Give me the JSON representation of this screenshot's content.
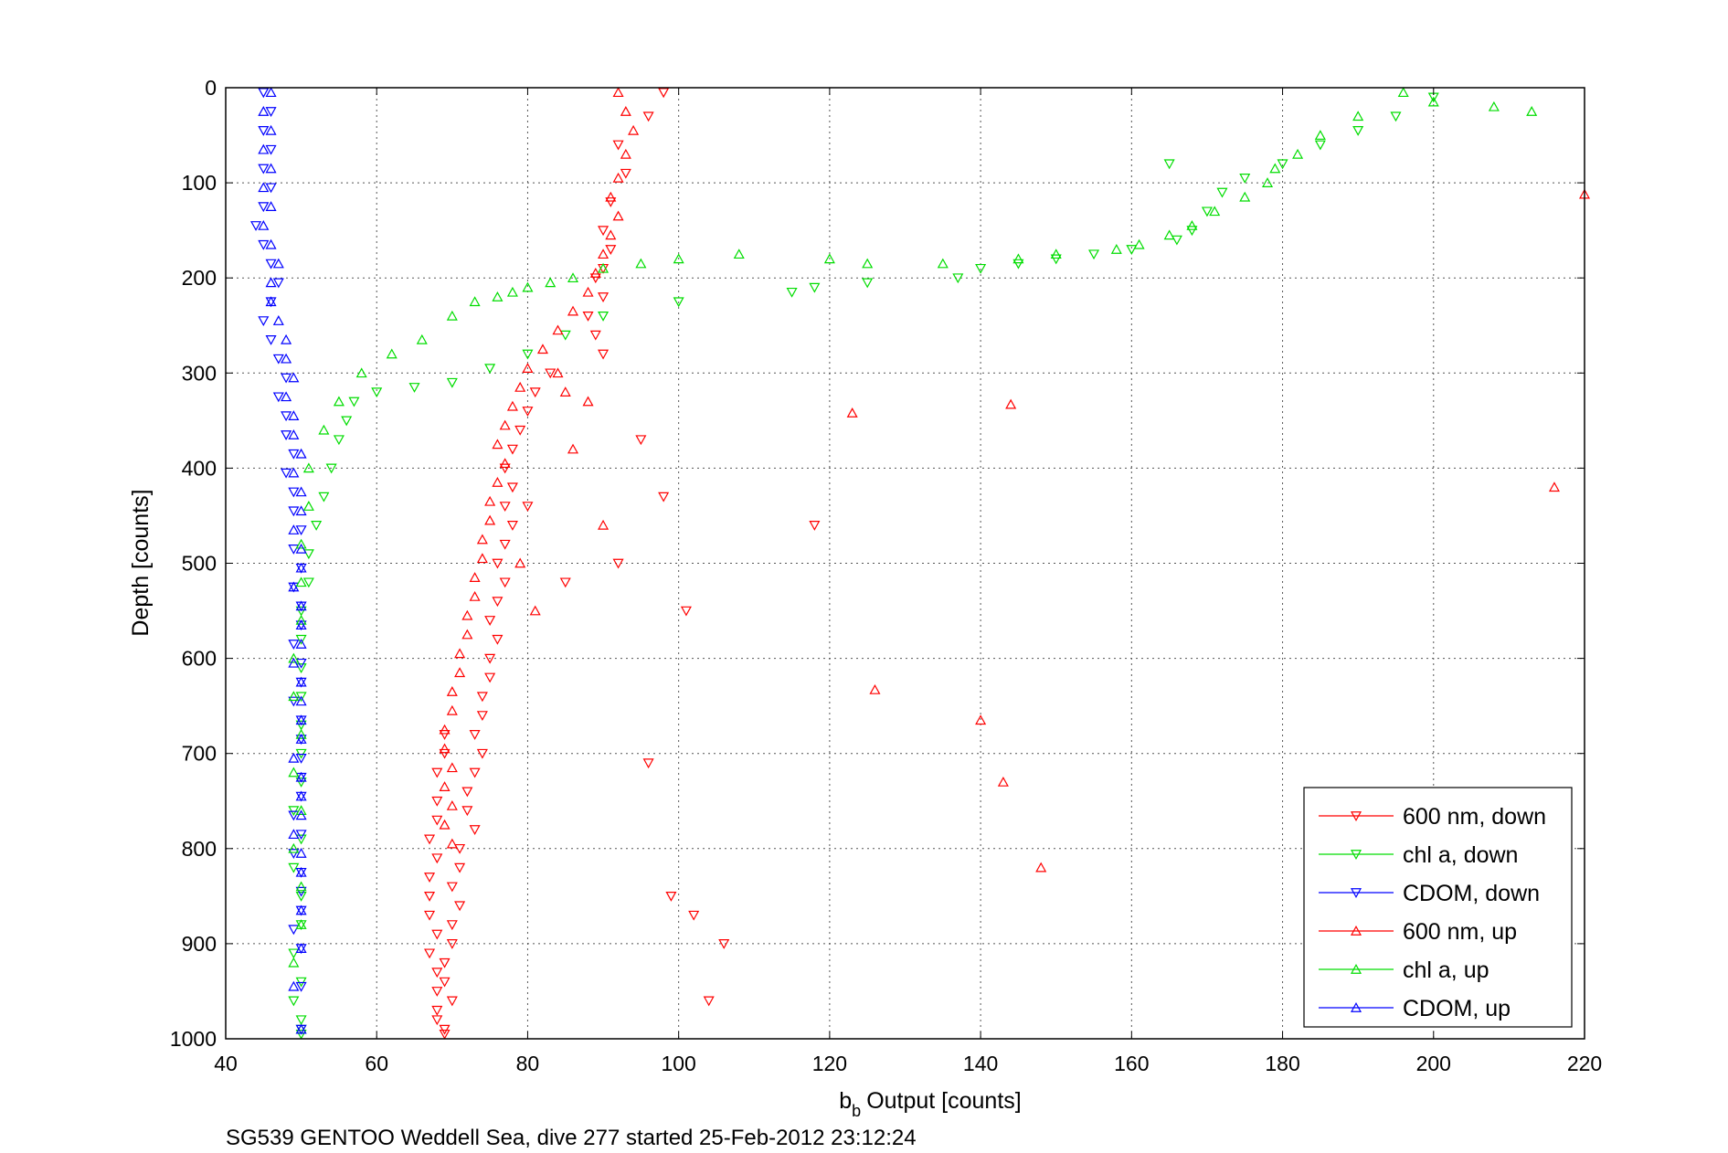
{
  "chart_data": {
    "type": "scatter",
    "title": "",
    "xlabel": "Output [counts]",
    "xlabel_prefix": "b",
    "xlabel_subscript": "b",
    "ylabel": "Depth [counts]",
    "xlim": [
      40,
      220
    ],
    "ylim": [
      0,
      1000
    ],
    "y_reversed": true,
    "grid": true,
    "x_ticks": [
      40,
      60,
      80,
      100,
      120,
      140,
      160,
      180,
      200,
      220
    ],
    "y_ticks": [
      0,
      100,
      200,
      300,
      400,
      500,
      600,
      700,
      800,
      900,
      1000
    ],
    "legend_position": "bottom-right",
    "series": [
      {
        "name": "600 nm, down",
        "color": "#ff0000",
        "marker": "triangle-down",
        "x": [
          98,
          96,
          92,
          93,
          91,
          90,
          91,
          90,
          89,
          90,
          88,
          89,
          90,
          83,
          81,
          80,
          79,
          78,
          77,
          78,
          77,
          78,
          77,
          76,
          77,
          76,
          75,
          76,
          75,
          75,
          74,
          74,
          73,
          74,
          73,
          72,
          72,
          73,
          71,
          71,
          70,
          71,
          70,
          70,
          69,
          69,
          70,
          68,
          69,
          68,
          68,
          67,
          68,
          67,
          67,
          67,
          68,
          67,
          68,
          68,
          68,
          69,
          68,
          69,
          69,
          80,
          85,
          95,
          98,
          101,
          92,
          118,
          99,
          102,
          104,
          106,
          96
        ],
        "y": [
          5,
          30,
          60,
          90,
          120,
          150,
          170,
          190,
          200,
          220,
          240,
          260,
          280,
          300,
          320,
          340,
          360,
          380,
          400,
          420,
          440,
          460,
          480,
          500,
          520,
          540,
          560,
          580,
          600,
          620,
          640,
          660,
          680,
          700,
          720,
          740,
          760,
          780,
          800,
          820,
          840,
          860,
          880,
          900,
          920,
          940,
          960,
          980,
          995,
          750,
          770,
          790,
          810,
          830,
          850,
          870,
          890,
          910,
          930,
          950,
          970,
          990,
          720,
          700,
          680,
          440,
          520,
          370,
          430,
          550,
          500,
          460,
          850,
          870,
          960,
          900,
          710
        ]
      },
      {
        "name": "chl a, down",
        "color": "#00dd00",
        "marker": "triangle-down",
        "x": [
          200,
          195,
          190,
          185,
          180,
          175,
          172,
          170,
          168,
          166,
          165,
          160,
          155,
          150,
          145,
          140,
          137,
          125,
          118,
          115,
          100,
          90,
          85,
          80,
          75,
          70,
          65,
          60,
          57,
          56,
          55,
          54,
          53,
          52,
          51,
          51,
          50,
          50,
          50,
          50,
          50,
          50,
          50,
          49,
          50,
          49,
          50,
          50,
          49,
          50,
          49,
          50,
          50,
          50
        ],
        "y": [
          10,
          30,
          45,
          60,
          80,
          95,
          110,
          130,
          150,
          160,
          80,
          170,
          175,
          180,
          185,
          190,
          200,
          205,
          210,
          215,
          225,
          240,
          260,
          280,
          295,
          310,
          315,
          320,
          330,
          350,
          370,
          400,
          430,
          460,
          490,
          520,
          550,
          580,
          610,
          640,
          670,
          700,
          730,
          760,
          790,
          820,
          850,
          880,
          910,
          940,
          960,
          980,
          995,
          990
        ]
      },
      {
        "name": "CDOM, down",
        "color": "#0000ff",
        "marker": "triangle-down",
        "x": [
          45,
          46,
          45,
          46,
          45,
          46,
          45,
          44,
          45,
          46,
          47,
          46,
          45,
          46,
          47,
          48,
          47,
          48,
          48,
          49,
          48,
          49,
          49,
          50,
          49,
          50,
          49,
          50,
          50,
          49,
          50,
          50,
          49,
          50,
          50,
          50,
          50,
          50,
          49,
          50,
          49,
          50,
          50,
          50,
          49,
          50,
          50,
          50
        ],
        "y": [
          5,
          25,
          45,
          65,
          85,
          105,
          125,
          145,
          165,
          185,
          205,
          225,
          245,
          265,
          285,
          305,
          325,
          345,
          365,
          385,
          405,
          425,
          445,
          465,
          485,
          505,
          525,
          545,
          565,
          585,
          605,
          625,
          645,
          665,
          685,
          705,
          725,
          745,
          765,
          785,
          805,
          825,
          845,
          865,
          885,
          905,
          945,
          990
        ]
      },
      {
        "name": "600 nm, up",
        "color": "#ff0000",
        "marker": "triangle-up",
        "x": [
          92,
          93,
          94,
          93,
          92,
          91,
          92,
          91,
          90,
          89,
          88,
          86,
          84,
          82,
          80,
          79,
          78,
          77,
          76,
          77,
          76,
          75,
          75,
          74,
          74,
          73,
          73,
          72,
          72,
          71,
          71,
          70,
          70,
          69,
          69,
          70,
          69,
          70,
          69,
          70,
          85,
          84,
          88,
          86,
          90,
          79,
          81,
          220,
          216,
          144,
          123,
          140,
          143,
          126,
          148
        ],
        "y": [
          5,
          25,
          45,
          70,
          95,
          115,
          135,
          155,
          175,
          195,
          215,
          235,
          255,
          275,
          295,
          315,
          335,
          355,
          375,
          395,
          415,
          435,
          455,
          475,
          495,
          515,
          535,
          555,
          575,
          595,
          615,
          635,
          655,
          675,
          695,
          715,
          735,
          755,
          775,
          795,
          320,
          300,
          330,
          380,
          460,
          500,
          550,
          112,
          420,
          333,
          342,
          665,
          730,
          633,
          820
        ]
      },
      {
        "name": "chl a, up",
        "color": "#00dd00",
        "marker": "triangle-up",
        "x": [
          196,
          200,
          208,
          213,
          190,
          185,
          182,
          179,
          178,
          175,
          171,
          168,
          165,
          161,
          158,
          150,
          145,
          135,
          125,
          120,
          108,
          100,
          95,
          90,
          86,
          83,
          80,
          78,
          76,
          73,
          70,
          66,
          62,
          58,
          55,
          53,
          51,
          51,
          50,
          50,
          50,
          49,
          49,
          50,
          49,
          50,
          49,
          50,
          50,
          49,
          50
        ],
        "y": [
          5,
          15,
          20,
          25,
          30,
          50,
          70,
          85,
          100,
          115,
          130,
          145,
          155,
          165,
          170,
          175,
          180,
          185,
          185,
          180,
          175,
          180,
          185,
          190,
          200,
          205,
          210,
          215,
          220,
          225,
          240,
          265,
          280,
          300,
          330,
          360,
          400,
          440,
          480,
          520,
          560,
          600,
          640,
          680,
          720,
          760,
          800,
          840,
          880,
          920,
          990
        ]
      },
      {
        "name": "CDOM, up",
        "color": "#0000ff",
        "marker": "triangle-up",
        "x": [
          46,
          45,
          46,
          45,
          46,
          45,
          46,
          45,
          46,
          47,
          46,
          46,
          47,
          48,
          48,
          49,
          48,
          49,
          49,
          50,
          49,
          50,
          50,
          49,
          50,
          50,
          49,
          50,
          50,
          50,
          49,
          50,
          50,
          50,
          50,
          49,
          50,
          50,
          50,
          49,
          50,
          50,
          50,
          50,
          49,
          50
        ],
        "y": [
          5,
          25,
          45,
          65,
          85,
          105,
          125,
          145,
          165,
          185,
          205,
          225,
          245,
          265,
          285,
          305,
          325,
          345,
          365,
          385,
          405,
          425,
          445,
          465,
          485,
          505,
          525,
          545,
          565,
          585,
          605,
          625,
          645,
          665,
          685,
          705,
          725,
          745,
          765,
          785,
          805,
          825,
          865,
          905,
          945,
          990
        ]
      }
    ]
  },
  "footnote": "SG539 GENTOO Weddell Sea, dive 277 started 25-Feb-2012 23:12:24"
}
